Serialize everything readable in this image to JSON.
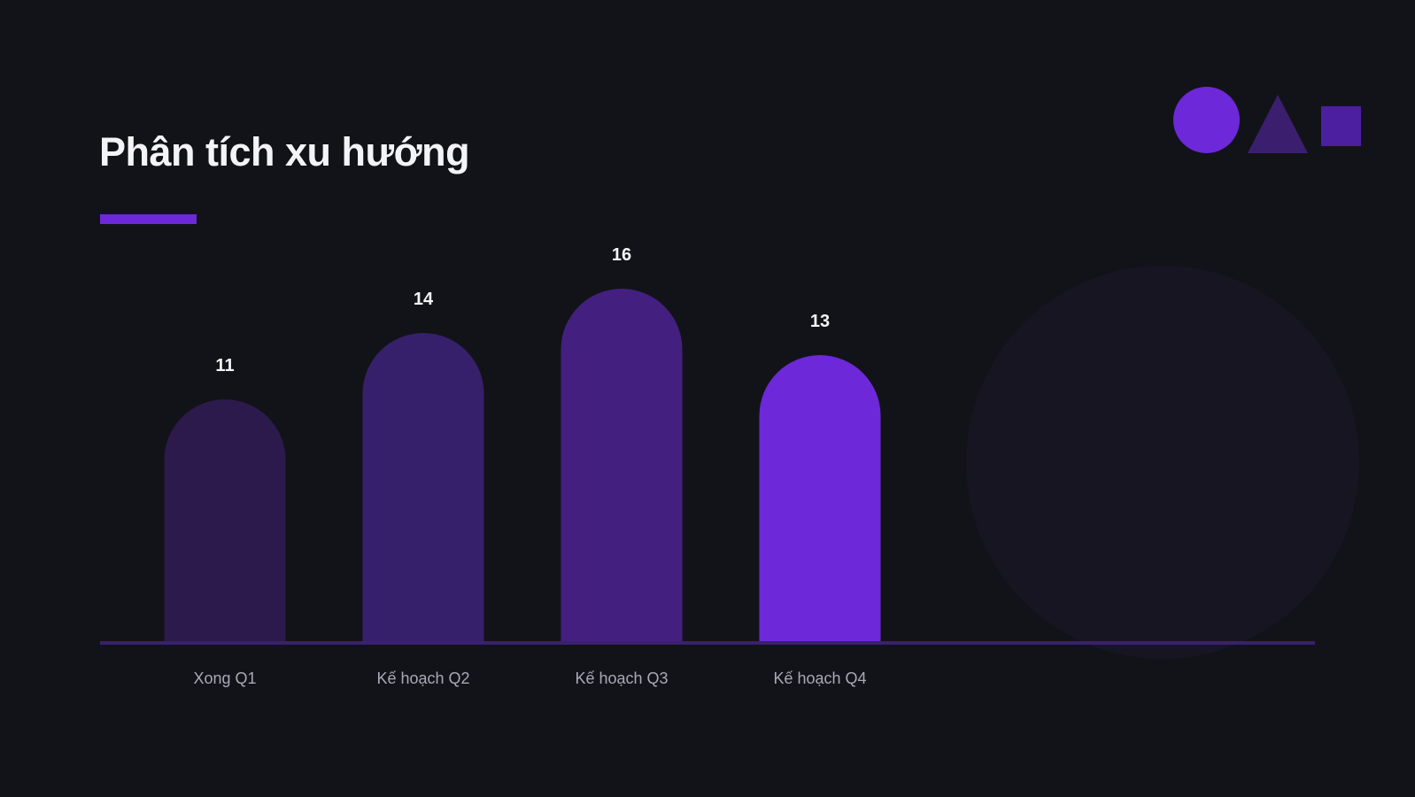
{
  "slide": {
    "title": "Phân tích xu hướng",
    "background_color": "#121319",
    "accent_color": "#6d28d9",
    "decor_colors": {
      "circle": "#6d28d9",
      "triangle": "#3b1f6e",
      "square": "#4c1fa0",
      "background_circle": "#181522"
    }
  },
  "chart_data": {
    "type": "bar",
    "title": "",
    "xlabel": "",
    "ylabel": "",
    "categories": [
      "Xong Q1",
      "Kế hoạch Q2",
      "Kế hoạch Q3",
      "Kế hoạch Q4"
    ],
    "values": [
      11,
      14,
      16,
      13
    ],
    "bar_colors": [
      "#2c1a4d",
      "#36206b",
      "#43207f",
      "#6d28d9"
    ],
    "baseline_color": "#3a2070",
    "ylim": [
      0,
      16
    ],
    "grid": false,
    "legend": "none"
  }
}
